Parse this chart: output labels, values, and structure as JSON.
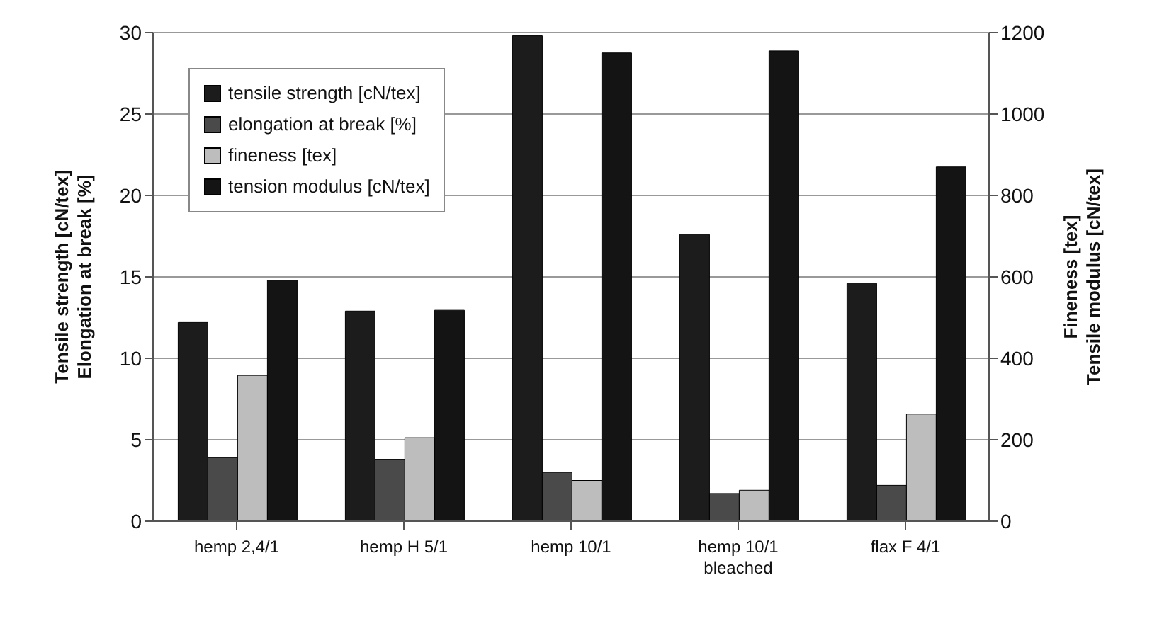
{
  "chart_data": {
    "type": "bar",
    "categories": [
      "hemp 2,4/1",
      "hemp H 5/1",
      "hemp 10/1",
      "hemp 10/1 bleached",
      "flax F 4/1"
    ],
    "ylabel": "Tensile strength [cN/tex]\nElongation at break [%]",
    "y2label": "Fineness  [tex]\nTensile modulus [cN/tex]",
    "series": [
      {
        "name": "tensile strength  [cN/tex]",
        "color": "#1c1c1c",
        "values": [
          12.2,
          12.9,
          29.8,
          17.6,
          14.6
        ]
      },
      {
        "name": "elongation at break  [%]",
        "color": "#4a4a4a",
        "values": [
          3.9,
          3.8,
          3.0,
          1.7,
          2.2
        ]
      },
      {
        "name": "fineness  [tex]",
        "color": "#bdbdbd",
        "axis": "y2",
        "values": [
          358,
          205,
          100,
          76,
          263
        ]
      },
      {
        "name": "tension modulus  [cN/tex]",
        "color": "#141414",
        "axis": "y2",
        "values": [
          592,
          518,
          1150,
          1155,
          870
        ]
      }
    ],
    "ylim": [
      0,
      30
    ],
    "yticks": [
      0,
      5,
      10,
      15,
      20,
      25,
      30
    ],
    "y2lim": [
      0,
      1200
    ],
    "y2ticks": [
      0,
      200,
      400,
      600,
      800,
      1000,
      1200
    ],
    "grid": "y",
    "legend": "top left"
  }
}
